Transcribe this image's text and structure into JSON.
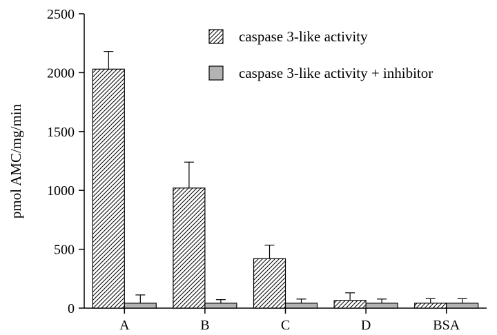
{
  "chart_data": {
    "type": "bar",
    "title": "",
    "xlabel": "",
    "ylabel": "pmol AMC/mg/min",
    "categories": [
      "A",
      "B",
      "C",
      "D",
      "BSA"
    ],
    "ylim": [
      0,
      2500
    ],
    "yticks": [
      0,
      500,
      1000,
      1500,
      2000,
      2500
    ],
    "series": [
      {
        "name": "caspase 3-like activity",
        "pattern": "hatched",
        "values": [
          2030,
          1020,
          420,
          65,
          42
        ],
        "errors": [
          150,
          220,
          115,
          65,
          38
        ]
      },
      {
        "name": "caspase 3-like activity + inhibitor",
        "pattern": "gray",
        "fill": "#b3b3b3",
        "values": [
          42,
          42,
          42,
          42,
          42
        ],
        "errors": [
          70,
          30,
          35,
          35,
          38
        ]
      }
    ],
    "legend_position": "top-right",
    "grid": false
  }
}
